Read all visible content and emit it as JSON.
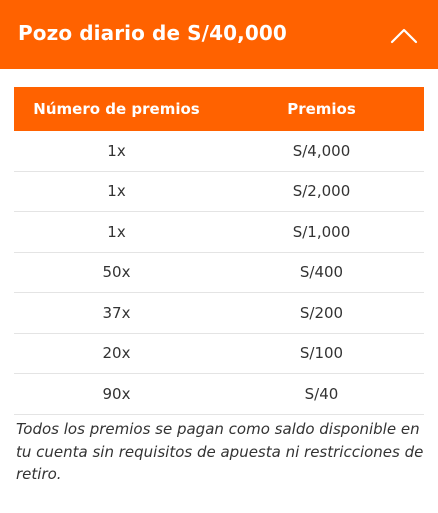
{
  "header": {
    "title": "Pozo diario de S/40,000",
    "toggle_icon": "chevron-up-icon",
    "color": "#ff6200"
  },
  "table": {
    "columns": [
      "Número de premios",
      "Premios"
    ],
    "rows": [
      {
        "count": "1x",
        "prize": "S/4,000"
      },
      {
        "count": "1x",
        "prize": "S/2,000"
      },
      {
        "count": "1x",
        "prize": "S/1,000"
      },
      {
        "count": "50x",
        "prize": "S/400"
      },
      {
        "count": "37x",
        "prize": "S/200"
      },
      {
        "count": "20x",
        "prize": "S/100"
      },
      {
        "count": "90x",
        "prize": "S/40"
      }
    ]
  },
  "note": "Todos los premios se pagan como saldo disponible en tu cuenta sin requisitos de apuesta ni restricciones de retiro."
}
